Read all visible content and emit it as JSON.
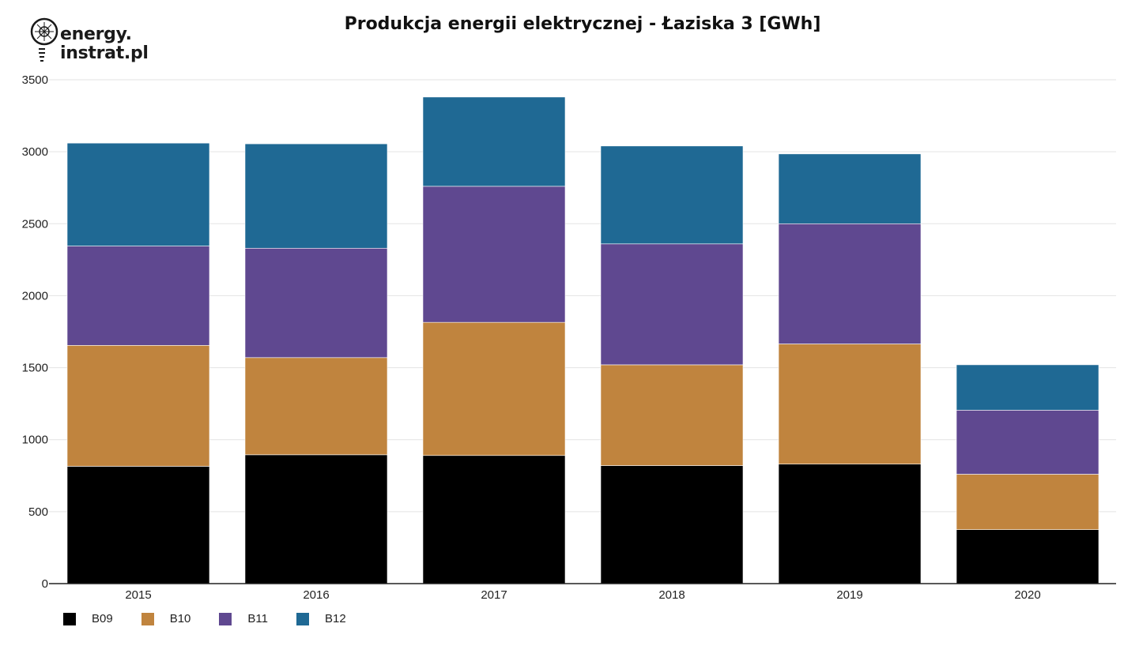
{
  "logo": {
    "line1": "energy.",
    "line2": "instrat.pl"
  },
  "chart_data": {
    "type": "bar",
    "stacked": true,
    "title": "Produkcja energii elektrycznej - Łaziska 3 [GWh]",
    "xlabel": "",
    "ylabel": "",
    "categories": [
      "2015",
      "2016",
      "2017",
      "2018",
      "2019",
      "2020"
    ],
    "ylim": [
      0,
      3500
    ],
    "yticks": [
      0,
      500,
      1000,
      1500,
      2000,
      2500,
      3000,
      3500
    ],
    "grid": true,
    "legend_position": "bottom-left",
    "series": [
      {
        "name": "B09",
        "color": "#000000",
        "values": [
          815,
          895,
          890,
          820,
          830,
          375
        ]
      },
      {
        "name": "B10",
        "color": "#c0843e",
        "values": [
          840,
          675,
          925,
          700,
          835,
          385
        ]
      },
      {
        "name": "B11",
        "color": "#5f4890",
        "values": [
          690,
          760,
          945,
          840,
          835,
          445
        ]
      },
      {
        "name": "B12",
        "color": "#1f6994",
        "values": [
          715,
          725,
          620,
          680,
          485,
          315
        ]
      }
    ]
  }
}
